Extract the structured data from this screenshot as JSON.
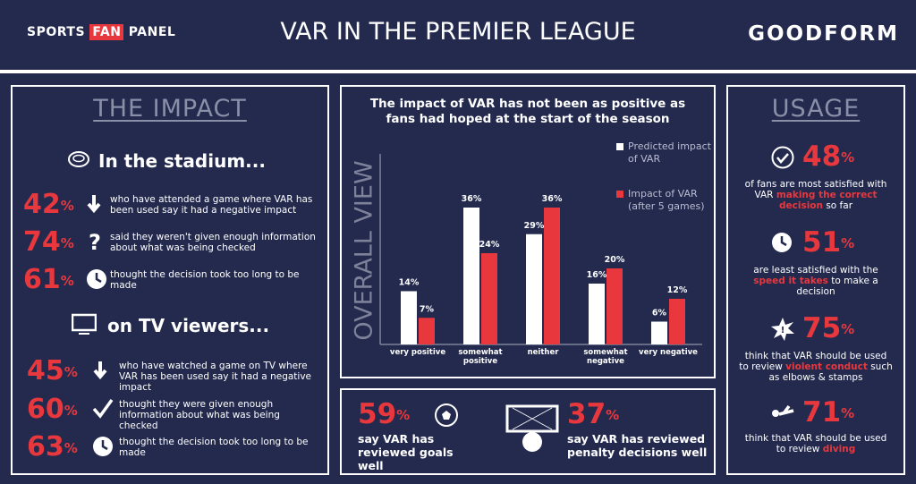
{
  "header": {
    "logo": [
      "SPORTS",
      "FAN",
      "PANEL"
    ],
    "title": "VAR IN THE PREMIER LEAGUE",
    "brand": "GOODFORM"
  },
  "percent_sign": "%",
  "impact": {
    "title": "THE IMPACT",
    "sections": [
      {
        "heading": "In the stadium...",
        "stats": [
          {
            "value": 42,
            "text": "who have attended a game where VAR has been used say it had a negative impact"
          },
          {
            "value": 74,
            "text": "said they weren't given enough information about what was being checked"
          },
          {
            "value": 61,
            "text": "thought the decision took too long to be made"
          }
        ]
      },
      {
        "heading": "on TV viewers...",
        "stats": [
          {
            "value": 45,
            "text": "who have watched a game on TV where VAR has been used say it had a negative impact"
          },
          {
            "value": 60,
            "text": "thought they were given enough information about what was being checked"
          },
          {
            "value": 63,
            "text": "thought the decision took too long to be made"
          }
        ]
      }
    ]
  },
  "chart_data": {
    "type": "bar",
    "title": "The impact of VAR has not been as positive as fans had hoped at the start of the season",
    "y_label": "OVERALL VIEW",
    "categories": [
      "very positive",
      "somewhat positive",
      "neither",
      "somewhat negative",
      "very negative"
    ],
    "series": [
      {
        "name": "Predicted impact of VAR",
        "color": "#ffffff",
        "values": [
          14,
          36,
          29,
          16,
          6
        ],
        "value_labels": [
          "14%",
          "36%",
          "29%",
          "16%",
          "6%"
        ]
      },
      {
        "name": "Impact of VAR (after 5 games)",
        "color": "#e8383d",
        "values": [
          7,
          24,
          36,
          20,
          12
        ],
        "value_labels": [
          "7%",
          "24%",
          "36%",
          "20%",
          "12%"
        ]
      }
    ],
    "ylim": [
      0,
      40
    ],
    "legend": "top-right"
  },
  "reviews": [
    {
      "value": 59,
      "text": "say VAR has reviewed goals well"
    },
    {
      "value": 37,
      "text": "say VAR has reviewed penalty decisions well"
    }
  ],
  "usage": {
    "title": "USAGE",
    "stats": [
      {
        "value": 48,
        "before": "of fans are most satisfied with VAR",
        "highlight": "making the correct decision",
        "after": "so far"
      },
      {
        "value": 51,
        "before": "are least satisfied with the",
        "highlight": "speed it takes",
        "after": "to make a decision"
      },
      {
        "value": 75,
        "before": "think that VAR should be used to review",
        "highlight": "violent conduct",
        "after": "such as elbows & stamps"
      },
      {
        "value": 71,
        "before": "think that VAR should be used to review",
        "highlight": "diving"
      }
    ]
  }
}
